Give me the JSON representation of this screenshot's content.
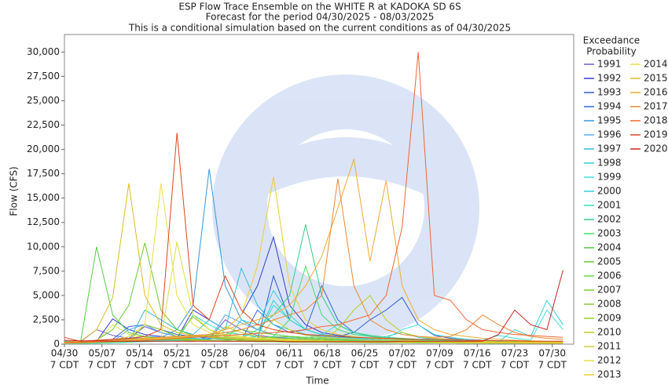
{
  "chart_data": {
    "type": "line",
    "title": [
      "ESP Flow Trace Ensemble on the WHITE R at KADOKA SD 6S",
      "Forecast for the period 04/30/2025 - 08/03/2025",
      "This is a conditional simulation based on the current conditions as of 04/30/2025"
    ],
    "xlabel": "Time",
    "ylabel": "Flow (CFS)",
    "legend_title": [
      "Exceedance",
      "Probability"
    ],
    "xlim": [
      "04/30",
      "08/03"
    ],
    "xticks": [
      "04/30",
      "05/07",
      "05/14",
      "05/21",
      "05/28",
      "06/04",
      "06/11",
      "06/18",
      "06/25",
      "07/02",
      "07/09",
      "07/16",
      "07/23",
      "07/30"
    ],
    "xtick_time": "7 CDT",
    "ylim": [
      0,
      31800
    ],
    "yticks": [
      0,
      {
        "value": 2500,
        "label": "2,500"
      },
      {
        "value": 5000,
        "label": "5,000"
      },
      {
        "value": 7500,
        "label": "7,500"
      },
      {
        "value": 10000,
        "label": "10,000"
      },
      {
        "value": 12500,
        "label": "12,500"
      },
      {
        "value": 15000,
        "label": "15,000"
      },
      {
        "value": 17500,
        "label": "17,500"
      },
      {
        "value": 20000,
        "label": "20,000"
      },
      {
        "value": 22500,
        "label": "22,500"
      },
      {
        "value": 25000,
        "label": "25,000"
      },
      {
        "value": 27500,
        "label": "27,500"
      },
      {
        "value": 30000,
        "label": "30,000"
      }
    ],
    "x": [
      "04/30",
      "05/03",
      "05/06",
      "05/09",
      "05/12",
      "05/15",
      "05/18",
      "05/21",
      "05/24",
      "05/27",
      "05/30",
      "06/02",
      "06/05",
      "06/08",
      "06/11",
      "06/14",
      "06/17",
      "06/20",
      "06/23",
      "06/26",
      "06/29",
      "07/02",
      "07/05",
      "07/08",
      "07/11",
      "07/14",
      "07/17",
      "07/20",
      "07/23",
      "07/26",
      "07/29",
      "08/01"
    ],
    "series": [
      {
        "name": "1991",
        "color": "#6a5acd",
        "values": [
          300,
          250,
          1500,
          900,
          600,
          1800,
          1200,
          800,
          600,
          500,
          2500,
          1500,
          900,
          700,
          600,
          500,
          400,
          400,
          350,
          300,
          300,
          250,
          250,
          200,
          200,
          200,
          180,
          150,
          150,
          150,
          120,
          120
        ]
      },
      {
        "name": "1992",
        "color": "#3a3acc",
        "values": [
          200,
          200,
          300,
          2600,
          1500,
          1000,
          800,
          600,
          3500,
          2500,
          1500,
          3000,
          6000,
          11000,
          4000,
          2000,
          1200,
          900,
          700,
          600,
          500,
          450,
          400,
          350,
          300,
          300,
          250,
          250,
          200,
          200,
          200,
          200
        ]
      },
      {
        "name": "1993",
        "color": "#3355cc",
        "values": [
          150,
          150,
          200,
          400,
          600,
          500,
          400,
          350,
          300,
          800,
          600,
          500,
          500,
          7000,
          2500,
          1500,
          1000,
          800,
          1200,
          2500,
          3500,
          4800,
          2000,
          900,
          600,
          500,
          400,
          350,
          300,
          300,
          250,
          250
        ]
      },
      {
        "name": "1994",
        "color": "#3366dd",
        "values": [
          200,
          200,
          300,
          500,
          1800,
          2000,
          1500,
          1000,
          800,
          600,
          500,
          400,
          3500,
          2000,
          1200,
          1500,
          6000,
          2500,
          1200,
          800,
          600,
          500,
          400,
          350,
          300,
          300,
          250,
          250,
          200,
          200,
          200,
          200
        ]
      },
      {
        "name": "1995",
        "color": "#3399dd",
        "values": [
          100,
          100,
          200,
          300,
          500,
          800,
          700,
          1500,
          4000,
          18000,
          6000,
          2500,
          1500,
          1000,
          800,
          700,
          600,
          500,
          450,
          400,
          350,
          300,
          300,
          250,
          250,
          200,
          200,
          200,
          180,
          180,
          150,
          150
        ]
      },
      {
        "name": "1996",
        "color": "#55aaee",
        "values": [
          150,
          150,
          200,
          300,
          1500,
          2000,
          1200,
          800,
          600,
          500,
          3000,
          2200,
          1500,
          1000,
          800,
          700,
          600,
          500,
          400,
          350,
          300,
          300,
          250,
          250,
          200,
          200,
          200,
          180,
          180,
          150,
          150,
          150
        ]
      },
      {
        "name": "1997",
        "color": "#33bbdd",
        "values": [
          100,
          120,
          150,
          200,
          300,
          3500,
          2500,
          1500,
          1000,
          2500,
          1500,
          7800,
          4000,
          2000,
          1500,
          1000,
          800,
          700,
          600,
          500,
          400,
          350,
          300,
          300,
          250,
          250,
          200,
          200,
          200,
          200,
          180,
          180
        ]
      },
      {
        "name": "1998",
        "color": "#33cccc",
        "values": [
          100,
          100,
          150,
          200,
          250,
          300,
          400,
          500,
          600,
          500,
          700,
          600,
          800,
          4500,
          2500,
          1500,
          1000,
          800,
          600,
          500,
          800,
          1200,
          700,
          500,
          400,
          350,
          300,
          300,
          250,
          250,
          250,
          200
        ]
      },
      {
        "name": "1999",
        "color": "#44dddd",
        "values": [
          80,
          80,
          100,
          150,
          200,
          300,
          400,
          500,
          500,
          400,
          400,
          500,
          600,
          800,
          700,
          600,
          1000,
          2000,
          1200,
          800,
          600,
          1500,
          2000,
          1000,
          700,
          500,
          400,
          900,
          600,
          400,
          3500,
          1500
        ]
      },
      {
        "name": "2000",
        "color": "#33ccdd",
        "values": [
          100,
          100,
          150,
          200,
          250,
          300,
          350,
          400,
          450,
          400,
          350,
          2500,
          2000,
          5500,
          3000,
          1500,
          1000,
          800,
          700,
          600,
          500,
          450,
          400,
          350,
          300,
          300,
          250,
          250,
          1500,
          800,
          4500,
          2000
        ]
      },
      {
        "name": "2001",
        "color": "#33ddbb",
        "values": [
          100,
          100,
          120,
          150,
          200,
          250,
          300,
          400,
          3000,
          2000,
          1200,
          1000,
          800,
          4000,
          2500,
          1500,
          1000,
          800,
          700,
          600,
          500,
          400,
          350,
          300,
          250,
          250,
          200,
          200,
          200,
          180,
          180,
          150
        ]
      },
      {
        "name": "2002",
        "color": "#33cc88",
        "values": [
          150,
          150,
          200,
          250,
          300,
          400,
          500,
          600,
          700,
          800,
          700,
          600,
          1500,
          3000,
          5000,
          12300,
          5000,
          2000,
          1200,
          900,
          700,
          600,
          500,
          400,
          350,
          300,
          300,
          250,
          250,
          200,
          200,
          200
        ]
      },
      {
        "name": "2003",
        "color": "#44dd66",
        "values": [
          100,
          100,
          150,
          200,
          250,
          300,
          300,
          350,
          400,
          400,
          400,
          500,
          600,
          800,
          2500,
          8000,
          3000,
          1500,
          1000,
          800,
          600,
          500,
          400,
          350,
          300,
          300,
          250,
          250,
          200,
          200,
          200,
          200
        ]
      },
      {
        "name": "2004",
        "color": "#55cc44",
        "values": [
          300,
          200,
          10000,
          3000,
          1200,
          800,
          600,
          500,
          400,
          350,
          300,
          300,
          250,
          250,
          200,
          200,
          200,
          180,
          180,
          150,
          150,
          150,
          120,
          120,
          120,
          100,
          100,
          100,
          100,
          100,
          100,
          100
        ]
      },
      {
        "name": "2005",
        "color": "#66cc33",
        "values": [
          200,
          200,
          400,
          1500,
          4000,
          10400,
          3500,
          1500,
          900,
          700,
          500,
          400,
          350,
          300,
          250,
          250,
          200,
          200,
          200,
          180,
          180,
          150,
          150,
          150,
          120,
          120,
          120,
          100,
          100,
          100,
          100,
          100
        ]
      },
      {
        "name": "2006",
        "color": "#66dd44",
        "values": [
          150,
          150,
          200,
          300,
          400,
          500,
          600,
          700,
          800,
          900,
          1000,
          1500,
          1200,
          1000,
          800,
          700,
          600,
          500,
          450,
          400,
          350,
          300,
          300,
          250,
          250,
          200,
          200,
          200,
          180,
          180,
          150,
          150
        ]
      },
      {
        "name": "2007",
        "color": "#77cc33",
        "values": [
          200,
          200,
          300,
          400,
          500,
          600,
          700,
          600,
          500,
          400,
          400,
          500,
          600,
          700,
          800,
          600,
          500,
          400,
          350,
          300,
          250,
          250,
          200,
          200,
          200,
          180,
          180,
          150,
          150,
          150,
          120,
          120
        ]
      },
      {
        "name": "2008",
        "color": "#88cc33",
        "values": [
          200,
          200,
          250,
          300,
          350,
          400,
          450,
          500,
          450,
          400,
          350,
          300,
          400,
          500,
          600,
          500,
          400,
          350,
          300,
          250,
          250,
          200,
          200,
          180,
          180,
          150,
          150,
          150,
          120,
          120,
          120,
          100
        ]
      },
      {
        "name": "2009",
        "color": "#99cc22",
        "values": [
          150,
          150,
          200,
          250,
          300,
          2000,
          1500,
          800,
          2800,
          1500,
          800,
          600,
          500,
          400,
          350,
          300,
          300,
          250,
          250,
          200,
          200,
          200,
          180,
          180,
          150,
          150,
          150,
          120,
          120,
          120,
          100,
          100
        ]
      },
      {
        "name": "2010",
        "color": "#bbcc22",
        "values": [
          150,
          150,
          200,
          300,
          400,
          500,
          600,
          500,
          400,
          350,
          1800,
          1200,
          800,
          600,
          500,
          400,
          350,
          1500,
          3500,
          5000,
          2500,
          1200,
          800,
          600,
          500,
          400,
          350,
          300,
          300,
          250,
          250,
          200
        ]
      },
      {
        "name": "2011",
        "color": "#cccc33",
        "values": [
          200,
          200,
          300,
          400,
          500,
          600,
          700,
          800,
          900,
          800,
          700,
          600,
          500,
          2500,
          1500,
          900,
          700,
          600,
          500,
          400,
          350,
          300,
          300,
          250,
          250,
          200,
          200,
          200,
          200,
          180,
          180,
          150
        ]
      },
      {
        "name": "2012",
        "color": "#dddd44",
        "values": [
          200,
          200,
          300,
          2000,
          1000,
          700,
          600,
          10500,
          3000,
          1500,
          1000,
          800,
          600,
          500,
          400,
          350,
          300,
          300,
          250,
          250,
          200,
          200,
          200,
          180,
          180,
          150,
          150,
          150,
          120,
          120,
          120,
          100
        ]
      },
      {
        "name": "2013",
        "color": "#eecc33",
        "values": [
          150,
          150,
          200,
          300,
          400,
          500,
          600,
          700,
          800,
          1000,
          1500,
          3000,
          8000,
          17200,
          6000,
          2500,
          1500,
          1000,
          800,
          600,
          500,
          400,
          350,
          300,
          300,
          250,
          250,
          200,
          200,
          200,
          180,
          180
        ]
      },
      {
        "name": "2014",
        "color": "#eedd44",
        "values": [
          150,
          200,
          300,
          400,
          800,
          2000,
          16500,
          5000,
          2000,
          1200,
          900,
          700,
          600,
          500,
          400,
          350,
          300,
          300,
          250,
          250,
          200,
          200,
          200,
          180,
          180,
          150,
          150,
          150,
          120,
          120,
          120,
          100
        ]
      },
      {
        "name": "2015",
        "color": "#ddbb22",
        "values": [
          200,
          300,
          1500,
          4800,
          16500,
          5000,
          2000,
          1200,
          900,
          700,
          600,
          500,
          400,
          350,
          300,
          300,
          250,
          250,
          200,
          200,
          200,
          180,
          180,
          150,
          150,
          150,
          120,
          120,
          120,
          100,
          100,
          100
        ]
      },
      {
        "name": "2016",
        "color": "#eeaa33",
        "values": [
          100,
          150,
          200,
          250,
          300,
          400,
          500,
          600,
          800,
          1000,
          1500,
          2000,
          2500,
          3000,
          4000,
          6000,
          9000,
          14000,
          19000,
          8500,
          16800,
          6000,
          2500,
          1500,
          1000,
          800,
          600,
          500,
          400,
          350,
          300,
          300
        ]
      },
      {
        "name": "2017",
        "color": "#ee8833",
        "values": [
          200,
          200,
          300,
          400,
          500,
          600,
          700,
          800,
          900,
          1000,
          1200,
          1500,
          2000,
          2500,
          3000,
          3500,
          5000,
          17000,
          6000,
          2500,
          1500,
          1000,
          800,
          700,
          800,
          1500,
          3000,
          2000,
          1200,
          800,
          600,
          500
        ]
      },
      {
        "name": "2018",
        "color": "#ee6633",
        "values": [
          200,
          200,
          250,
          300,
          350,
          400,
          500,
          600,
          700,
          800,
          900,
          1000,
          1100,
          1200,
          1300,
          1500,
          1800,
          2000,
          2500,
          3000,
          5000,
          12000,
          30000,
          5000,
          4500,
          2500,
          1500,
          1200,
          1000,
          900,
          800,
          700
        ]
      },
      {
        "name": "2019",
        "color": "#dd4422",
        "values": [
          700,
          300,
          400,
          500,
          600,
          800,
          1500,
          21700,
          4000,
          2500,
          7000,
          3500,
          2000,
          1500,
          1200,
          1000,
          900,
          800,
          700,
          650,
          600,
          550,
          500,
          500,
          450,
          400,
          400,
          350,
          350,
          300,
          300,
          300
        ]
      },
      {
        "name": "2020",
        "color": "#cc2222",
        "values": [
          400,
          350,
          350,
          300,
          300,
          300,
          300,
          300,
          300,
          300,
          300,
          300,
          300,
          300,
          250,
          250,
          250,
          250,
          250,
          250,
          250,
          300,
          300,
          300,
          300,
          300,
          300,
          1000,
          3500,
          2000,
          1500,
          7600
        ]
      }
    ]
  }
}
